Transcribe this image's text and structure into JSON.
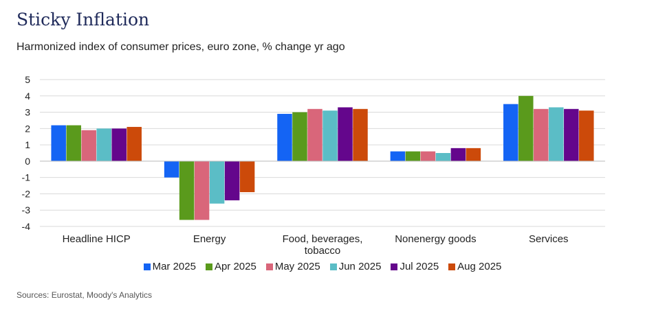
{
  "header": {
    "title": "Sticky Inflation",
    "subtitle": "Harmonized index of consumer prices, euro zone, % change yr ago"
  },
  "footer": {
    "source": "Sources: Eurostat, Moody's Analytics"
  },
  "chart_data": {
    "type": "bar",
    "title": "Sticky Inflation",
    "subtitle": "Harmonized index of consumer prices, euro zone, % change yr ago",
    "xlabel": "",
    "ylabel": "",
    "ylim": [
      -4,
      5
    ],
    "yticks": [
      "5",
      "4",
      "3",
      "2",
      "1",
      "0",
      "-1",
      "-2",
      "-3",
      "-4"
    ],
    "ytick_values": [
      5,
      4,
      3,
      2,
      1,
      0,
      -1,
      -2,
      -3,
      -4
    ],
    "grid": true,
    "legend_position": "bottom",
    "categories": [
      "Headline HICP",
      "Energy",
      "Food, beverages, tobacco",
      "Nonenergy goods",
      "Services"
    ],
    "category_lines": [
      [
        "Headline HICP"
      ],
      [
        "Energy"
      ],
      [
        "Food, beverages,",
        "tobacco"
      ],
      [
        "Nonenergy goods"
      ],
      [
        "Services"
      ]
    ],
    "series": [
      {
        "name": "Mar 2025",
        "color": "#1464f4",
        "values": [
          2.2,
          -1.0,
          2.9,
          0.6,
          3.5
        ]
      },
      {
        "name": "Apr 2025",
        "color": "#5a9a1c",
        "values": [
          2.2,
          -3.6,
          3.0,
          0.6,
          4.0
        ]
      },
      {
        "name": "May 2025",
        "color": "#d9667a",
        "values": [
          1.9,
          -3.6,
          3.2,
          0.6,
          3.2
        ]
      },
      {
        "name": "Jun 2025",
        "color": "#5bbdc6",
        "values": [
          2.0,
          -2.6,
          3.1,
          0.5,
          3.3
        ]
      },
      {
        "name": "Jul 2025",
        "color": "#64068c",
        "values": [
          2.0,
          -2.4,
          3.3,
          0.8,
          3.2
        ]
      },
      {
        "name": "Aug 2025",
        "color": "#cc4a0a",
        "values": [
          2.1,
          -1.9,
          3.2,
          0.8,
          3.1
        ]
      }
    ]
  }
}
